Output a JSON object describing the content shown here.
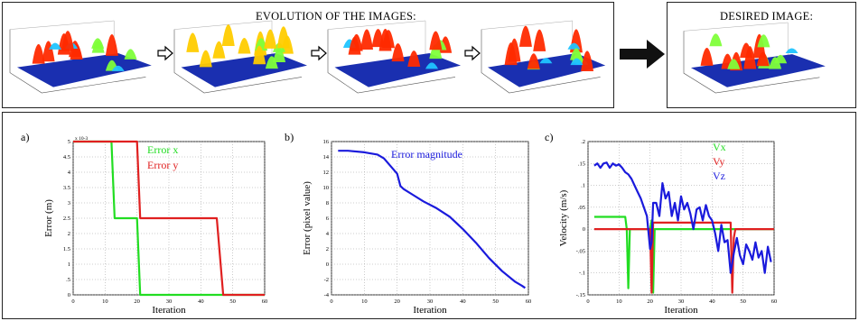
{
  "top": {
    "evolution_title": "EVOLUTION OF THE IMAGES:",
    "desired_title": "DESIRED IMAGE:"
  },
  "panel_labels": [
    "a)",
    "b)",
    "c)"
  ],
  "chart_data": [
    {
      "type": "line",
      "panel": "a)",
      "xlabel": "Iteration",
      "ylabel": "Error (m)",
      "xlim": [
        0,
        60
      ],
      "ylim": [
        0,
        5
      ],
      "y_multiplier": "x 10-3",
      "xticks": [
        0,
        10,
        20,
        30,
        40,
        50,
        60
      ],
      "yticks": [
        0,
        0.5,
        1,
        1.5,
        2,
        2.5,
        3,
        3.5,
        4,
        4.5,
        5
      ],
      "grid": true,
      "legend": "top-right",
      "series": [
        {
          "name": "Error x",
          "color": "#22dd22",
          "x": [
            0,
            12,
            13,
            20,
            21,
            60
          ],
          "y": [
            5,
            5,
            2.5,
            2.5,
            0,
            0
          ]
        },
        {
          "name": "Error y",
          "color": "#e02020",
          "x": [
            0,
            20,
            21,
            45,
            47,
            60
          ],
          "y": [
            5,
            5,
            2.5,
            2.5,
            0,
            0
          ]
        }
      ]
    },
    {
      "type": "line",
      "panel": "b)",
      "xlabel": "Iteration",
      "ylabel": "Error (pixel value)",
      "xlim": [
        0,
        60
      ],
      "ylim": [
        -4,
        16
      ],
      "xticks": [
        0,
        10,
        20,
        30,
        40,
        50,
        60
      ],
      "yticks": [
        -4,
        -2,
        0,
        2,
        4,
        6,
        8,
        10,
        12,
        14,
        16
      ],
      "grid": true,
      "legend": "top-right",
      "series": [
        {
          "name": "Error magnitude",
          "color": "#1a1adc",
          "x": [
            2,
            5,
            10,
            14,
            16,
            18,
            20,
            21,
            22,
            25,
            28,
            32,
            36,
            40,
            44,
            48,
            52,
            56,
            58,
            59
          ],
          "y": [
            14.8,
            14.8,
            14.6,
            14.3,
            13.8,
            12.8,
            11.8,
            10.2,
            9.8,
            9.0,
            8.2,
            7.3,
            6.2,
            4.6,
            2.8,
            0.8,
            -0.9,
            -2.3,
            -2.8,
            -3.1
          ]
        }
      ]
    },
    {
      "type": "line",
      "panel": "c)",
      "xlabel": "Iteration",
      "ylabel": "Velocity (m/s)",
      "xlim": [
        0,
        60
      ],
      "ylim": [
        -0.15,
        0.2
      ],
      "xticks": [
        0,
        10,
        20,
        30,
        40,
        50,
        60
      ],
      "yticks": [
        -0.15,
        -0.1,
        -0.05,
        0,
        0.05,
        0.1,
        0.15,
        0.2
      ],
      "grid": true,
      "legend": "top-right",
      "series": [
        {
          "name": "Vx",
          "color": "#22dd22",
          "x": [
            2,
            12,
            12.5,
            13,
            13.5,
            20,
            20.5,
            21,
            21.5,
            22,
            60
          ],
          "y": [
            0.028,
            0.028,
            0.0,
            -0.135,
            0.0,
            0.0,
            0.02,
            -0.145,
            0.0,
            0.0,
            0.0
          ]
        },
        {
          "name": "Vy",
          "color": "#e02020",
          "x": [
            2,
            20,
            20.5,
            21,
            21.5,
            46,
            46.5,
            47,
            47.5,
            48,
            60
          ],
          "y": [
            0.0,
            0.0,
            -0.145,
            0.015,
            0.015,
            0.015,
            -0.145,
            -0.02,
            0.0,
            0.0,
            0.0
          ]
        },
        {
          "name": "Vz",
          "color": "#1a1adc",
          "x": [
            2,
            3,
            4,
            5,
            6,
            7,
            8,
            9,
            10,
            11,
            12,
            13,
            14,
            15,
            16,
            17,
            18,
            19,
            20,
            20.5,
            21,
            22,
            23,
            24,
            25,
            26,
            27,
            28,
            29,
            30,
            31,
            32,
            33,
            34,
            35,
            36,
            37,
            38,
            39,
            40,
            41,
            42,
            43,
            44,
            45,
            46,
            47,
            48,
            49,
            50,
            51,
            52,
            53,
            54,
            55,
            56,
            57,
            58,
            59
          ],
          "y": [
            0.145,
            0.15,
            0.14,
            0.15,
            0.152,
            0.14,
            0.15,
            0.145,
            0.148,
            0.14,
            0.13,
            0.125,
            0.115,
            0.1,
            0.085,
            0.07,
            0.05,
            0.03,
            -0.045,
            -0.03,
            0.06,
            0.06,
            0.03,
            0.105,
            0.07,
            0.085,
            0.03,
            0.06,
            0.02,
            0.075,
            0.045,
            0.06,
            0.035,
            0.0,
            0.045,
            0.05,
            0.02,
            0.055,
            0.03,
            0.02,
            -0.01,
            -0.05,
            0.01,
            -0.03,
            -0.025,
            -0.1,
            -0.055,
            -0.02,
            -0.06,
            -0.08,
            -0.035,
            -0.05,
            -0.07,
            -0.03,
            -0.065,
            -0.05,
            -0.1,
            -0.04,
            -0.075
          ]
        }
      ]
    }
  ]
}
